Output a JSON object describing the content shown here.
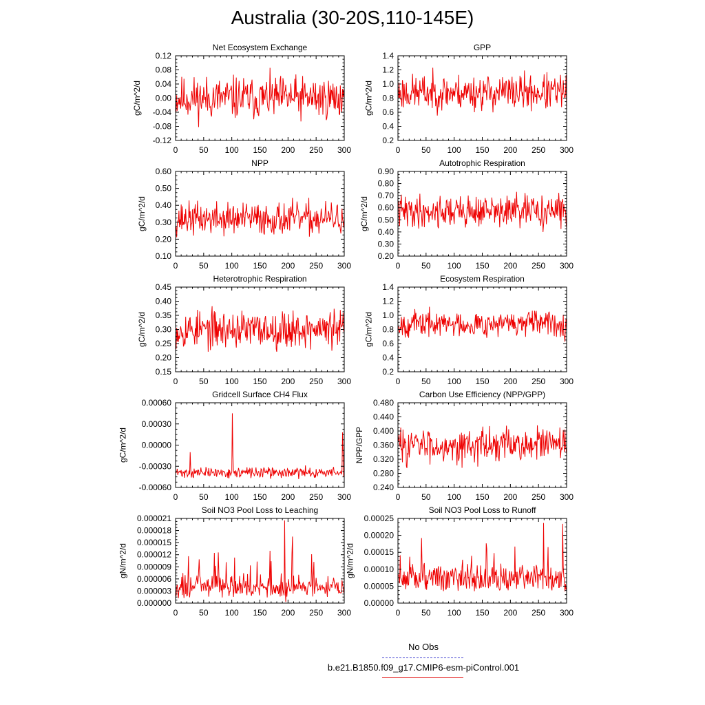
{
  "title": "Australia (30-20S,110-145E)",
  "legend": {
    "items": [
      {
        "label": "No Obs",
        "color": "#4040d0",
        "style": "dashed"
      },
      {
        "label": "b.e21.B1850.f09_g17.CMIP6-esm-piControl.001",
        "color": "#e00000",
        "style": "solid"
      }
    ]
  },
  "series_color": "#ee0000",
  "chart_data": [
    {
      "type": "line",
      "title": "Net Ecosystem Exchange",
      "ylabel": "gC/m^2/d",
      "xlim": [
        0,
        300
      ],
      "ylim": [
        -0.12,
        0.12
      ],
      "xticks": [
        "0",
        "50",
        "100",
        "150",
        "200",
        "250",
        "300"
      ],
      "yticks": [
        "-0.12",
        "-0.08",
        "-0.04",
        "0.00",
        "0.04",
        "0.08",
        "0.12"
      ],
      "n": 300,
      "mean": 0.0,
      "amp": 0.1,
      "minv": -0.105,
      "maxv": 0.095,
      "seed": 11
    },
    {
      "type": "line",
      "title": "GPP",
      "ylabel": "gC/m^2/d",
      "xlim": [
        0,
        300
      ],
      "ylim": [
        0.2,
        1.4
      ],
      "xticks": [
        "0",
        "50",
        "100",
        "150",
        "200",
        "250",
        "300"
      ],
      "yticks": [
        "0.2",
        "0.4",
        "0.6",
        "0.8",
        "1.0",
        "1.2",
        "1.4"
      ],
      "n": 300,
      "mean": 0.88,
      "amp": 0.42,
      "minv": 0.35,
      "maxv": 1.33,
      "seed": 23
    },
    {
      "type": "line",
      "title": "NPP",
      "ylabel": "gC/m^2/d",
      "xlim": [
        0,
        300
      ],
      "ylim": [
        0.1,
        0.6
      ],
      "xticks": [
        "0",
        "50",
        "100",
        "150",
        "200",
        "250",
        "300"
      ],
      "yticks": [
        "0.10",
        "0.20",
        "0.30",
        "0.40",
        "0.50",
        "0.60"
      ],
      "n": 300,
      "mean": 0.32,
      "amp": 0.16,
      "minv": 0.13,
      "maxv": 0.555,
      "seed": 37
    },
    {
      "type": "line",
      "title": "Autotrophic Respiration",
      "ylabel": "gC/m^2/d",
      "xlim": [
        0,
        300
      ],
      "ylim": [
        0.2,
        0.9
      ],
      "xticks": [
        "0",
        "50",
        "100",
        "150",
        "200",
        "250",
        "300"
      ],
      "yticks": [
        "0.20",
        "0.30",
        "0.40",
        "0.50",
        "0.60",
        "0.70",
        "0.80",
        "0.90"
      ],
      "n": 300,
      "mean": 0.57,
      "amp": 0.22,
      "minv": 0.21,
      "maxv": 0.84,
      "seed": 41
    },
    {
      "type": "line",
      "title": "Heterotrophic Respiration",
      "ylabel": "gC/m^2/d",
      "xlim": [
        0,
        300
      ],
      "ylim": [
        0.15,
        0.45
      ],
      "xticks": [
        "0",
        "50",
        "100",
        "150",
        "200",
        "250",
        "300"
      ],
      "yticks": [
        "0.15",
        "0.20",
        "0.25",
        "0.30",
        "0.35",
        "0.40",
        "0.45"
      ],
      "n": 300,
      "mean": 0.3,
      "amp": 0.11,
      "minv": 0.16,
      "maxv": 0.445,
      "seed": 53
    },
    {
      "type": "line",
      "title": "Ecosystem Respiration",
      "ylabel": "gC/m^2/d",
      "xlim": [
        0,
        300
      ],
      "ylim": [
        0.2,
        1.4
      ],
      "xticks": [
        "0",
        "50",
        "100",
        "150",
        "200",
        "250",
        "300"
      ],
      "yticks": [
        "0.2",
        "0.4",
        "0.6",
        "0.8",
        "1.0",
        "1.2",
        "1.4"
      ],
      "n": 300,
      "mean": 0.88,
      "amp": 0.3,
      "minv": 0.45,
      "maxv": 1.25,
      "seed": 67
    },
    {
      "type": "line",
      "title": "Gridcell Surface CH4 Flux",
      "ylabel": "gC/m^2/d",
      "xlim": [
        0,
        300
      ],
      "ylim": [
        -0.0006,
        0.0006
      ],
      "xticks": [
        "0",
        "50",
        "100",
        "150",
        "200",
        "250",
        "300"
      ],
      "yticks": [
        "-0.00060",
        "-0.00030",
        "0.00000",
        "0.00030",
        "0.00060"
      ],
      "n": 300,
      "mean": -0.00039,
      "amp": 0.00012,
      "minv": -0.0005,
      "maxv": 0.00045,
      "seed": 71,
      "spikes": [
        [
          100,
          0.00045
        ],
        [
          101,
          -0.00015
        ],
        [
          25,
          -0.0001
        ],
        [
          296,
          0.00018
        ],
        [
          297,
          -0.0001
        ]
      ]
    },
    {
      "type": "line",
      "title": "Carbon Use Efficiency (NPP/GPP)",
      "ylabel": "NPP/GPP",
      "xlim": [
        0,
        300
      ],
      "ylim": [
        0.24,
        0.48
      ],
      "xticks": [
        "0",
        "50",
        "100",
        "150",
        "200",
        "250",
        "300"
      ],
      "yticks": [
        "0.240",
        "0.280",
        "0.320",
        "0.360",
        "0.400",
        "0.440",
        "0.480"
      ],
      "n": 300,
      "mean": 0.36,
      "amp": 0.08,
      "minv": 0.27,
      "maxv": 0.46,
      "seed": 83
    },
    {
      "type": "line",
      "title": "Soil NO3 Pool Loss to Leaching",
      "ylabel": "gN/m^2/d",
      "xlim": [
        0,
        300
      ],
      "ylim": [
        0,
        2.1e-05
      ],
      "xticks": [
        "0",
        "50",
        "100",
        "150",
        "200",
        "250",
        "300"
      ],
      "yticks": [
        "0.000000",
        "0.000003",
        "0.000006",
        "0.000009",
        "0.000012",
        "0.000015",
        "0.000018",
        "0.000021"
      ],
      "n": 300,
      "mean": 3.5e-06,
      "amp": 9e-06,
      "minv": 2e-07,
      "maxv": 2.05e-05,
      "seed": 97,
      "skew": true,
      "spikes": [
        [
          193,
          2.05e-05
        ],
        [
          195,
          3e-07
        ],
        [
          207,
          1.65e-05
        ]
      ]
    },
    {
      "type": "line",
      "title": "Soil NO3 Pool Loss to Runoff",
      "ylabel": "gN/m^2/d",
      "xlim": [
        0,
        300
      ],
      "ylim": [
        0,
        0.00028
      ],
      "xticks": [
        "0",
        "50",
        "100",
        "150",
        "200",
        "250",
        "300"
      ],
      "yticks": [
        "0.00000",
        "0.00005",
        "0.00010",
        "0.00015",
        "0.00020",
        "0.00025"
      ],
      "n": 300,
      "mean": 8e-05,
      "amp": 0.00012,
      "minv": 2e-05,
      "maxv": 0.000265,
      "seed": 109,
      "skew": true,
      "spikes": [
        [
          258,
          0.000265
        ],
        [
          292,
          0.000262
        ]
      ]
    }
  ]
}
